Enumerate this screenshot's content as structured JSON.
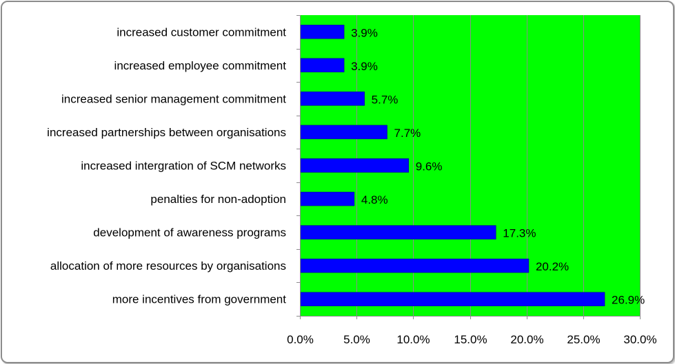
{
  "chart_data": {
    "type": "bar",
    "orientation": "horizontal",
    "categories": [
      "increased customer commitment",
      "increased employee commitment",
      "increased senior management commitment",
      "increased partnerships between organisations",
      "increased intergration of SCM networks",
      "penalties for non-adoption",
      "development of awareness programs",
      "allocation of more resources by organisations",
      "more incentives from government"
    ],
    "values": [
      3.9,
      3.9,
      5.7,
      7.7,
      9.6,
      4.8,
      17.3,
      20.2,
      26.9
    ],
    "data_labels": [
      "3.9%",
      "3.9%",
      "5.7%",
      "7.7%",
      "9.6%",
      "4.8%",
      "17.3%",
      "20.2%",
      "26.9%"
    ],
    "xlim": [
      0,
      30
    ],
    "xticks": [
      0,
      5,
      10,
      15,
      20,
      25,
      30
    ],
    "xtick_labels": [
      "0.0%",
      "5.0%",
      "10.0%",
      "15.0%",
      "20.0%",
      "25.0%",
      "30.0%"
    ],
    "grid": true,
    "legend": "none",
    "colors": {
      "plot_background": "#00ff00",
      "bar": "#0000ff",
      "gridline": "#8c8c8c",
      "frame_border": "#8c8c8c"
    }
  }
}
